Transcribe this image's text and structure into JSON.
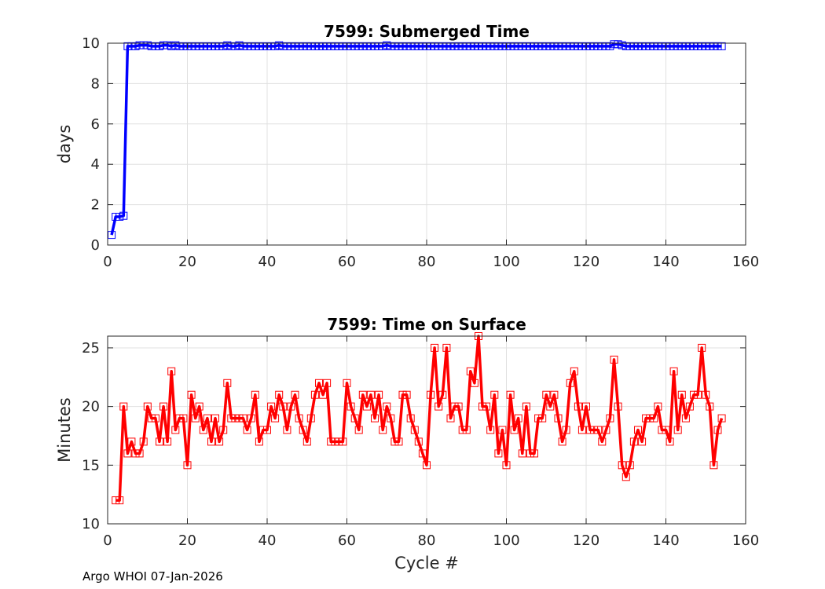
{
  "footer": "Argo WHOI 07-Jan-2026",
  "chart_data": [
    {
      "type": "line",
      "title": "7599: Submerged Time",
      "xlabel": "",
      "ylabel": "days",
      "xlim": [
        0,
        160
      ],
      "ylim": [
        0,
        10
      ],
      "xticks": [
        "0",
        "20",
        "40",
        "60",
        "80",
        "100",
        "120",
        "140",
        "160"
      ],
      "yticks": [
        "0",
        "2",
        "4",
        "6",
        "8",
        "10"
      ],
      "grid": true,
      "color": "#0000ff",
      "marker": "square",
      "series": [
        {
          "x": [
            1,
            2,
            3,
            4,
            5,
            6,
            7,
            8,
            9,
            10,
            11,
            12,
            13,
            14,
            15,
            16,
            17,
            18,
            19,
            20,
            21,
            22,
            23,
            24,
            25,
            26,
            27,
            28,
            29,
            30,
            31,
            32,
            33,
            34,
            35,
            36,
            37,
            38,
            39,
            40,
            41,
            42,
            43,
            44,
            45,
            46,
            47,
            48,
            49,
            50,
            51,
            52,
            53,
            54,
            55,
            56,
            57,
            58,
            59,
            60,
            61,
            62,
            63,
            64,
            65,
            66,
            67,
            68,
            69,
            70,
            71,
            72,
            73,
            74,
            75,
            76,
            77,
            78,
            79,
            80,
            81,
            82,
            83,
            84,
            85,
            86,
            87,
            88,
            89,
            90,
            91,
            92,
            93,
            94,
            95,
            96,
            97,
            98,
            99,
            100,
            101,
            102,
            103,
            104,
            105,
            106,
            107,
            108,
            109,
            110,
            111,
            112,
            113,
            114,
            115,
            116,
            117,
            118,
            119,
            120,
            121,
            122,
            123,
            124,
            125,
            126,
            127,
            128,
            129,
            130,
            131,
            132,
            133,
            134,
            135,
            136,
            137,
            138,
            139,
            140,
            141,
            142,
            143,
            144,
            145,
            146,
            147,
            148,
            149,
            150,
            151,
            152,
            153,
            154
          ],
          "y": [
            0.5,
            1.4,
            1.4,
            1.45,
            9.85,
            9.85,
            9.85,
            9.9,
            9.9,
            9.9,
            9.85,
            9.85,
            9.85,
            9.9,
            9.9,
            9.85,
            9.9,
            9.85,
            9.85,
            9.85,
            9.85,
            9.85,
            9.85,
            9.85,
            9.85,
            9.85,
            9.85,
            9.85,
            9.85,
            9.9,
            9.85,
            9.85,
            9.9,
            9.85,
            9.85,
            9.85,
            9.85,
            9.85,
            9.85,
            9.85,
            9.85,
            9.85,
            9.9,
            9.85,
            9.85,
            9.85,
            9.85,
            9.85,
            9.85,
            9.85,
            9.85,
            9.85,
            9.85,
            9.85,
            9.85,
            9.85,
            9.85,
            9.85,
            9.85,
            9.85,
            9.85,
            9.85,
            9.85,
            9.85,
            9.85,
            9.85,
            9.85,
            9.85,
            9.85,
            9.9,
            9.85,
            9.85,
            9.85,
            9.85,
            9.85,
            9.85,
            9.85,
            9.85,
            9.85,
            9.85,
            9.85,
            9.85,
            9.85,
            9.85,
            9.85,
            9.85,
            9.85,
            9.85,
            9.85,
            9.85,
            9.85,
            9.85,
            9.85,
            9.85,
            9.85,
            9.85,
            9.85,
            9.85,
            9.85,
            9.85,
            9.85,
            9.85,
            9.85,
            9.85,
            9.85,
            9.85,
            9.85,
            9.85,
            9.85,
            9.85,
            9.85,
            9.85,
            9.85,
            9.85,
            9.85,
            9.85,
            9.85,
            9.85,
            9.85,
            9.85,
            9.85,
            9.85,
            9.85,
            9.85,
            9.85,
            9.85,
            9.95,
            9.95,
            9.9,
            9.85,
            9.85,
            9.85,
            9.85,
            9.85,
            9.85,
            9.85,
            9.85,
            9.85,
            9.85,
            9.85,
            9.85,
            9.85,
            9.85,
            9.85,
            9.85,
            9.85,
            9.85,
            9.85,
            9.85,
            9.85,
            9.85,
            9.85,
            9.85,
            9.85
          ]
        }
      ]
    },
    {
      "type": "line",
      "title": "7599: Time on Surface",
      "xlabel": "Cycle #",
      "ylabel": "Minutes",
      "xlim": [
        0,
        160
      ],
      "ylim": [
        10,
        26
      ],
      "xticks": [
        "0",
        "20",
        "40",
        "60",
        "80",
        "100",
        "120",
        "140",
        "160"
      ],
      "yticks": [
        "10",
        "15",
        "20",
        "25"
      ],
      "grid": true,
      "color": "#ff0000",
      "marker": "square",
      "series": [
        {
          "x": [
            2,
            3,
            4,
            5,
            6,
            7,
            8,
            9,
            10,
            11,
            12,
            13,
            14,
            15,
            16,
            17,
            18,
            19,
            20,
            21,
            22,
            23,
            24,
            25,
            26,
            27,
            28,
            29,
            30,
            31,
            32,
            33,
            34,
            35,
            36,
            37,
            38,
            39,
            40,
            41,
            42,
            43,
            44,
            45,
            46,
            47,
            48,
            49,
            50,
            51,
            52,
            53,
            54,
            55,
            56,
            57,
            58,
            59,
            60,
            61,
            62,
            63,
            64,
            65,
            66,
            67,
            68,
            69,
            70,
            71,
            72,
            73,
            74,
            75,
            76,
            77,
            78,
            79,
            80,
            81,
            82,
            83,
            84,
            85,
            86,
            87,
            88,
            89,
            90,
            91,
            92,
            93,
            94,
            95,
            96,
            97,
            98,
            99,
            100,
            101,
            102,
            103,
            104,
            105,
            106,
            107,
            108,
            109,
            110,
            111,
            112,
            113,
            114,
            115,
            116,
            117,
            118,
            119,
            120,
            121,
            122,
            123,
            124,
            125,
            126,
            127,
            128,
            129,
            130,
            131,
            132,
            133,
            134,
            135,
            136,
            137,
            138,
            139,
            140,
            141,
            142,
            143,
            144,
            145,
            146,
            147,
            148,
            149,
            150,
            151,
            152,
            153,
            154
          ],
          "y": [
            12,
            12,
            20,
            16,
            17,
            16,
            16,
            17,
            20,
            19,
            19,
            17,
            20,
            17,
            23,
            18,
            19,
            19,
            15,
            21,
            19,
            20,
            18,
            19,
            17,
            19,
            17,
            18,
            22,
            19,
            19,
            19,
            19,
            18,
            19,
            21,
            17,
            18,
            18,
            20,
            19,
            21,
            20,
            18,
            20,
            21,
            19,
            18,
            17,
            19,
            21,
            22,
            21,
            22,
            17,
            17,
            17,
            17,
            22,
            20,
            19,
            18,
            21,
            20,
            21,
            19,
            21,
            18,
            20,
            19,
            17,
            17,
            21,
            21,
            19,
            18,
            17,
            16,
            15,
            21,
            25,
            20,
            21,
            25,
            19,
            20,
            20,
            18,
            18,
            23,
            22,
            26,
            20,
            20,
            18,
            21,
            16,
            18,
            15,
            21,
            18,
            19,
            16,
            20,
            16,
            16,
            19,
            19,
            21,
            20,
            21,
            19,
            17,
            18,
            22,
            23,
            20,
            18,
            20,
            18,
            18,
            18,
            17,
            18,
            19,
            24,
            20,
            15,
            14,
            15,
            17,
            18,
            17,
            19,
            19,
            19,
            20,
            18,
            18,
            17,
            23,
            18,
            21,
            19,
            20,
            21,
            21,
            25,
            21,
            20,
            15,
            18,
            19
          ]
        }
      ]
    }
  ]
}
